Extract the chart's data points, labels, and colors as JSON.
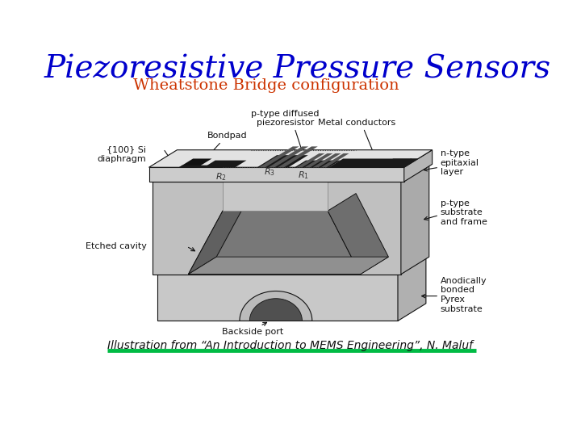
{
  "title": "Piezoresistive Pressure Sensors",
  "subtitle": "Wheatstone Bridge configuration",
  "title_color": "#0000CC",
  "subtitle_color": "#CC3300",
  "title_fontsize": 28,
  "subtitle_fontsize": 14,
  "caption": "Illustration from “An Introduction to MEMS Engineering”, N. Maluf",
  "caption_color": "#111111",
  "caption_fontsize": 10,
  "green_line_color": "#00BB44",
  "bg_color": "#FFFFFF",
  "label_fontsize": 8,
  "label_color": "#111111"
}
